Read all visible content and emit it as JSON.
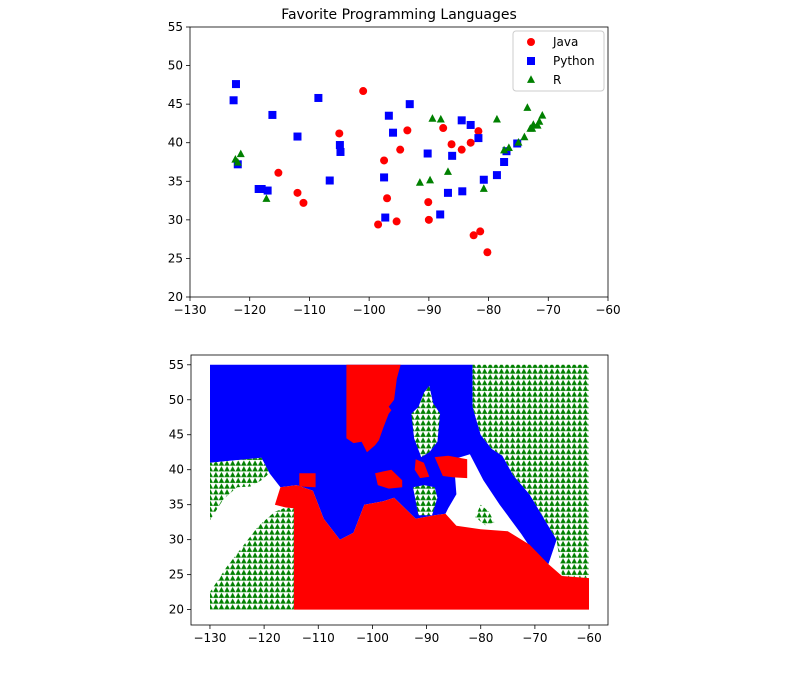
{
  "colors": {
    "Java": "#ff0000",
    "Python": "#0000ff",
    "R": "#008000"
  },
  "chart_data": [
    {
      "type": "scatter",
      "title": "Favorite Programming Languages",
      "xlim": [
        -130,
        -60
      ],
      "ylim": [
        20,
        55
      ],
      "xticks": [
        -130,
        -120,
        -110,
        -100,
        -90,
        -80,
        -70,
        -60
      ],
      "yticks": [
        20,
        25,
        30,
        35,
        40,
        45,
        50,
        55
      ],
      "legend": "top-right",
      "series": [
        {
          "name": "Java",
          "marker": "circle",
          "color": "#ff0000",
          "points": [
            [
              -101,
              46.7
            ],
            [
              -105,
              41.2
            ],
            [
              -97.5,
              37.7
            ],
            [
              -94.8,
              39.1
            ],
            [
              -93.6,
              41.6
            ],
            [
              -87.6,
              41.9
            ],
            [
              -86.2,
              39.8
            ],
            [
              -84.5,
              39.1
            ],
            [
              -83,
              40
            ],
            [
              -81.7,
              41.5
            ],
            [
              -115.2,
              36.1
            ],
            [
              -112,
              33.5
            ],
            [
              -111,
              32.2
            ],
            [
              -118.3,
              34
            ],
            [
              -97,
              32.8
            ],
            [
              -98.5,
              29.4
            ],
            [
              -95.4,
              29.8
            ],
            [
              -90,
              30
            ],
            [
              -90.1,
              32.3
            ],
            [
              -82.5,
              28
            ],
            [
              -81.4,
              28.5
            ],
            [
              -80.2,
              25.8
            ]
          ]
        },
        {
          "name": "Python",
          "marker": "square",
          "color": "#0000ff",
          "points": [
            [
              -122.3,
              47.6
            ],
            [
              -122.7,
              45.5
            ],
            [
              -116.2,
              43.6
            ],
            [
              -112,
              40.8
            ],
            [
              -108.5,
              45.8
            ],
            [
              -104.9,
              39.7
            ],
            [
              -104.8,
              38.8
            ],
            [
              -106.6,
              35.1
            ],
            [
              -122,
              37.2
            ],
            [
              -118.5,
              34
            ],
            [
              -118,
              34
            ],
            [
              -117,
              33.8
            ],
            [
              -96.7,
              43.5
            ],
            [
              -96,
              41.3
            ],
            [
              -93.2,
              45
            ],
            [
              -90.2,
              38.6
            ],
            [
              -97.5,
              35.5
            ],
            [
              -97.3,
              30.3
            ],
            [
              -88.1,
              30.7
            ],
            [
              -86.8,
              33.5
            ],
            [
              -84.4,
              33.7
            ],
            [
              -86.1,
              38.3
            ],
            [
              -84.5,
              42.9
            ],
            [
              -83,
              42.3
            ],
            [
              -81.7,
              40.6
            ],
            [
              -80.8,
              35.2
            ],
            [
              -78.6,
              35.8
            ],
            [
              -77.4,
              37.5
            ],
            [
              -77,
              38.9
            ],
            [
              -75.2,
              39.9
            ]
          ]
        },
        {
          "name": "R",
          "marker": "triangle",
          "color": "#008000",
          "points": [
            [
              -122.4,
              37.8
            ],
            [
              -121.5,
              38.5
            ],
            [
              -117.2,
              32.7
            ],
            [
              -122,
              37.4
            ],
            [
              -89.4,
              43.1
            ],
            [
              -88,
              43
            ],
            [
              -86.8,
              36.2
            ],
            [
              -89.8,
              35.1
            ],
            [
              -91.5,
              34.8
            ],
            [
              -80.8,
              34
            ],
            [
              -78.6,
              43
            ],
            [
              -76.6,
              39.3
            ],
            [
              -75,
              40
            ],
            [
              -74,
              40.7
            ],
            [
              -73,
              41.8
            ],
            [
              -72.7,
              41.8
            ],
            [
              -71.8,
              42.2
            ],
            [
              -71.5,
              42.7
            ],
            [
              -72.5,
              42.3
            ],
            [
              -71,
              43.5
            ],
            [
              -73.5,
              44.5
            ],
            [
              -77.4,
              39
            ]
          ]
        }
      ]
    },
    {
      "type": "scatter",
      "xlim": [
        -130,
        -60
      ],
      "ylim": [
        20,
        55
      ],
      "xticks": [
        -130,
        -120,
        -110,
        -100,
        -90,
        -80,
        -70,
        -60
      ],
      "yticks": [
        20,
        25,
        30,
        35,
        40,
        45,
        50,
        55
      ],
      "grid_step": 1,
      "marker_by_class": {
        "Java": "circle",
        "Python": "square",
        "R": "triangle"
      },
      "regions": [
        {
          "class": "Python",
          "polygon": [
            [
              -130,
              55
            ],
            [
              -130,
              41
            ],
            [
              -120.5,
              41.7
            ],
            [
              -119,
              39.5
            ],
            [
              -117,
              37.5
            ],
            [
              -114,
              37.8
            ],
            [
              -111,
              37
            ],
            [
              -109,
              33
            ],
            [
              -106,
              30
            ],
            [
              -103.5,
              31
            ],
            [
              -101.5,
              35
            ],
            [
              -98,
              35.5
            ],
            [
              -96,
              36
            ],
            [
              -92,
              33
            ],
            [
              -88.5,
              33.5
            ],
            [
              -86.5,
              33.7
            ],
            [
              -86,
              34.5
            ],
            [
              -84.5,
              36.5
            ],
            [
              -85,
              41.5
            ],
            [
              -82,
              42.2
            ],
            [
              -79.5,
              38.5
            ],
            [
              -76.5,
              35
            ],
            [
              -72.5,
              30.8
            ],
            [
              -70.5,
              28.5
            ],
            [
              -67.5,
              26.5
            ],
            [
              -66,
              30
            ],
            [
              -71,
              36.5
            ],
            [
              -74,
              39.2
            ],
            [
              -76,
              42
            ],
            [
              -78,
              43
            ],
            [
              -80,
              45
            ],
            [
              -81.5,
              49
            ],
            [
              -81.5,
              55
            ]
          ]
        },
        {
          "class": "R",
          "polygon": [
            [
              -81.5,
              55
            ],
            [
              -81.5,
              49
            ],
            [
              -80,
              45
            ],
            [
              -78,
              43
            ],
            [
              -76,
              42
            ],
            [
              -74,
              39.2
            ],
            [
              -71,
              36.5
            ],
            [
              -66,
              30
            ],
            [
              -65,
              24.8
            ],
            [
              -60,
              24.5
            ],
            [
              -60,
              55
            ]
          ]
        },
        {
          "class": "R",
          "polygon": [
            [
              -130,
              41
            ],
            [
              -130,
              32.8
            ],
            [
              -127.5,
              35.8
            ],
            [
              -125,
              37.5
            ],
            [
              -122.5,
              37.6
            ],
            [
              -120.5,
              38.5
            ],
            [
              -119,
              39.5
            ],
            [
              -120.5,
              41.7
            ]
          ]
        },
        {
          "class": "R",
          "polygon": [
            [
              -130,
              20
            ],
            [
              -130,
              22.5
            ],
            [
              -127,
              26
            ],
            [
              -124,
              29
            ],
            [
              -121,
              32
            ],
            [
              -118,
              34
            ],
            [
              -116,
              34.6
            ],
            [
              -114.5,
              34.5
            ],
            [
              -114.5,
              20
            ]
          ]
        },
        {
          "class": "R",
          "polygon": [
            [
              -92.8,
              48
            ],
            [
              -92.3,
              44.5
            ],
            [
              -91,
              41.8
            ],
            [
              -89.5,
              42.5
            ],
            [
              -88,
              44
            ],
            [
              -87.5,
              48
            ],
            [
              -88.8,
              49.5
            ],
            [
              -89.5,
              52
            ],
            [
              -90.5,
              51
            ],
            [
              -91.5,
              49
            ]
          ]
        },
        {
          "class": "R",
          "polygon": [
            [
              -92.5,
              37.5
            ],
            [
              -91.5,
              33.5
            ],
            [
              -89,
              33.5
            ],
            [
              -88,
              36
            ],
            [
              -88.5,
              37.5
            ],
            [
              -90.5,
              37.8
            ]
          ]
        },
        {
          "class": "R",
          "polygon": [
            [
              -81,
              33.2
            ],
            [
              -79,
              32
            ],
            [
              -77.5,
              32.5
            ],
            [
              -78.5,
              34
            ],
            [
              -80,
              35
            ]
          ]
        },
        {
          "class": "Java",
          "polygon": [
            [
              -114.5,
              20
            ],
            [
              -114.5,
              34.5
            ],
            [
              -116,
              34.6
            ],
            [
              -118,
              35
            ],
            [
              -117,
              37.5
            ],
            [
              -114,
              37.8
            ],
            [
              -111,
              37
            ],
            [
              -109,
              33
            ],
            [
              -106,
              30
            ],
            [
              -103.5,
              31
            ],
            [
              -101.5,
              35
            ],
            [
              -98,
              35.5
            ],
            [
              -96,
              36
            ],
            [
              -92,
              33
            ],
            [
              -88.5,
              33.5
            ],
            [
              -86.5,
              33.7
            ],
            [
              -84.5,
              32
            ],
            [
              -80,
              31.5
            ],
            [
              -75,
              31.2
            ],
            [
              -71,
              29.3
            ],
            [
              -67.5,
              26.5
            ],
            [
              -65,
              24.8
            ],
            [
              -60,
              24.5
            ],
            [
              -60,
              20
            ]
          ]
        },
        {
          "class": "Java",
          "polygon": [
            [
              -104.8,
              55
            ],
            [
              -104.8,
              44.5
            ],
            [
              -103.5,
              43.8
            ],
            [
              -102,
              44
            ],
            [
              -101,
              42.5
            ],
            [
              -99.5,
              43.5
            ],
            [
              -98.8,
              44.2
            ],
            [
              -98,
              46
            ],
            [
              -97,
              48
            ],
            [
              -96.5,
              48.5
            ],
            [
              -97,
              49
            ],
            [
              -96,
              50
            ],
            [
              -95.5,
              53
            ],
            [
              -94.8,
              55
            ]
          ]
        },
        {
          "class": "Java",
          "polygon": [
            [
              -99.5,
              39.5
            ],
            [
              -96.5,
              40
            ],
            [
              -94.5,
              38.5
            ],
            [
              -94.5,
              37.5
            ],
            [
              -97,
              37.3
            ],
            [
              -99,
              37.8
            ]
          ]
        },
        {
          "class": "Java",
          "polygon": [
            [
              -92,
              41.5
            ],
            [
              -90.5,
              41
            ],
            [
              -90,
              40
            ],
            [
              -89.5,
              39
            ],
            [
              -91.2,
              38.8
            ],
            [
              -92.2,
              40
            ]
          ]
        },
        {
          "class": "Java",
          "polygon": [
            [
              -88.5,
              41.8
            ],
            [
              -86,
              42
            ],
            [
              -82.5,
              41.5
            ],
            [
              -82.5,
              38.8
            ],
            [
              -85,
              38.9
            ],
            [
              -87,
              39.1
            ]
          ]
        },
        {
          "class": "Java",
          "polygon": [
            [
              -113.5,
              39.5
            ],
            [
              -110.5,
              39.5
            ],
            [
              -110.5,
              37.5
            ],
            [
              -113.5,
              37.6
            ]
          ]
        }
      ]
    }
  ]
}
